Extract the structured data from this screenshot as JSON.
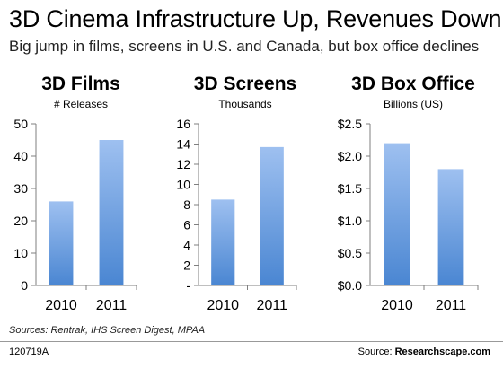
{
  "title": "3D Cinema Infrastructure Up, Revenues Down",
  "subtitle": "Big jump in films, screens in U.S. and Canada, but box office declines",
  "bar_color_top": "#9ec0f0",
  "bar_color_bottom": "#4a86d2",
  "chart_data": [
    {
      "type": "bar",
      "title": "3D Films",
      "subtitle": "# Releases",
      "categories": [
        "2010",
        "2011"
      ],
      "values": [
        26,
        45
      ],
      "ylim": [
        0,
        50
      ],
      "yticks": [
        0,
        10,
        20,
        30,
        40,
        50
      ],
      "ytick_labels": [
        "0",
        "10",
        "20",
        "30",
        "40",
        "50"
      ],
      "grid": false
    },
    {
      "type": "bar",
      "title": "3D Screens",
      "subtitle": "Thousands",
      "categories": [
        "2010",
        "2011"
      ],
      "values": [
        8.5,
        13.7
      ],
      "ylim": [
        0,
        16
      ],
      "yticks": [
        0,
        2,
        4,
        6,
        8,
        10,
        12,
        14,
        16
      ],
      "ytick_labels": [
        "-",
        "2",
        "4",
        "6",
        "8",
        "10",
        "12",
        "14",
        "16"
      ],
      "grid": false
    },
    {
      "type": "bar",
      "title": "3D Box Office",
      "subtitle": "Billions (US)",
      "categories": [
        "2010",
        "2011"
      ],
      "values": [
        2.2,
        1.8
      ],
      "ylim": [
        0,
        2.5
      ],
      "yticks": [
        0,
        0.5,
        1.0,
        1.5,
        2.0,
        2.5
      ],
      "ytick_labels": [
        "$0.0",
        "$0.5",
        "$1.0",
        "$1.5",
        "$2.0",
        "$2.5"
      ],
      "grid": false
    }
  ],
  "source_note": "Sources: Rentrak, IHS Screen Digest, MPAA",
  "footer": {
    "code": "120719A",
    "source_label": "Source: ",
    "source_name": "Researchscape.com"
  }
}
